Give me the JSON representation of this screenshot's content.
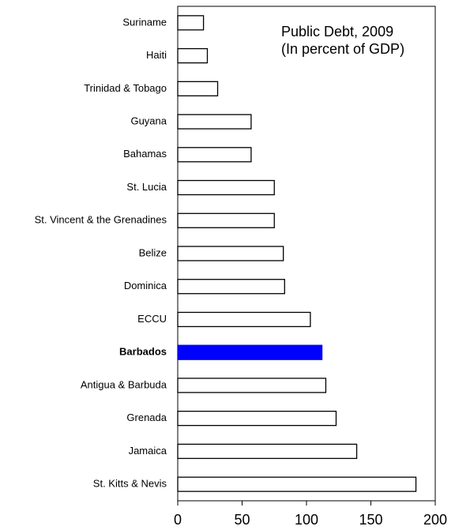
{
  "chart_data": {
    "type": "hbar",
    "title": "Public Debt, 2009",
    "subtitle": "(In percent of GDP)",
    "categories": [
      "Suriname",
      "Haiti",
      "Trinidad & Tobago",
      "Guyana",
      "Bahamas",
      "St. Lucia",
      "St. Vincent & the Grenadines",
      "Belize",
      "Dominica",
      "ECCU",
      "Barbados",
      "Antigua & Barbuda",
      "Grenada",
      "Jamaica",
      "St. Kitts & Nevis"
    ],
    "values": [
      20,
      23,
      31,
      57,
      57,
      75,
      75,
      82,
      83,
      103,
      112,
      115,
      123,
      139,
      185
    ],
    "color": "#ffffff",
    "colors": [
      "#ffffff",
      "#ffffff",
      "#ffffff",
      "#ffffff",
      "#ffffff",
      "#ffffff",
      "#ffffff",
      "#ffffff",
      "#ffffff",
      "#ffffff",
      "#0000ff",
      "#ffffff",
      "#ffffff",
      "#ffffff",
      "#ffffff"
    ],
    "xlim": [
      0,
      200
    ],
    "xticks": [
      0,
      50,
      100,
      150,
      200
    ],
    "grid": false
  }
}
